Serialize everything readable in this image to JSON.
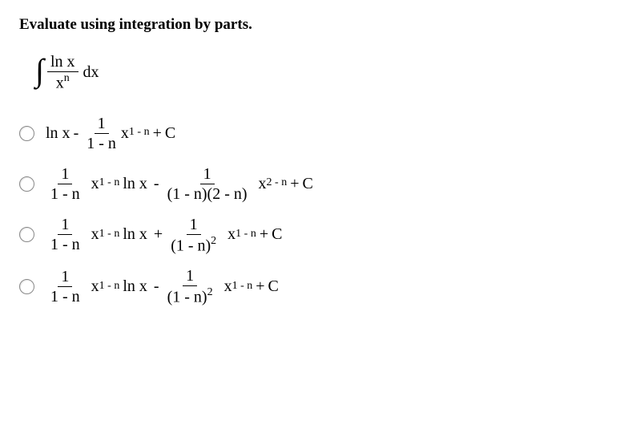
{
  "title": "Evaluate using integration by parts.",
  "integral": {
    "numer": "ln x",
    "denom_base": "x",
    "denom_exp": "n",
    "dx": "dx"
  },
  "tokens": {
    "lnx": "ln x",
    "minus": "-",
    "plus": "+",
    "C": "C",
    "one": "1",
    "one_minus_n": "1 - n",
    "one_minus_n_2_minus_n": "(1 - n)(2 - n)",
    "one_minus_n_sq_base": "(1 - n)",
    "sq": "2",
    "x": "x",
    "exp_1n": "1 - n",
    "exp_2n": "2 - n"
  },
  "style": {
    "text_color": "#000000",
    "background_color": "#ffffff",
    "title_fontsize": 19,
    "body_fontsize": 20,
    "radio_border": "#888888"
  }
}
